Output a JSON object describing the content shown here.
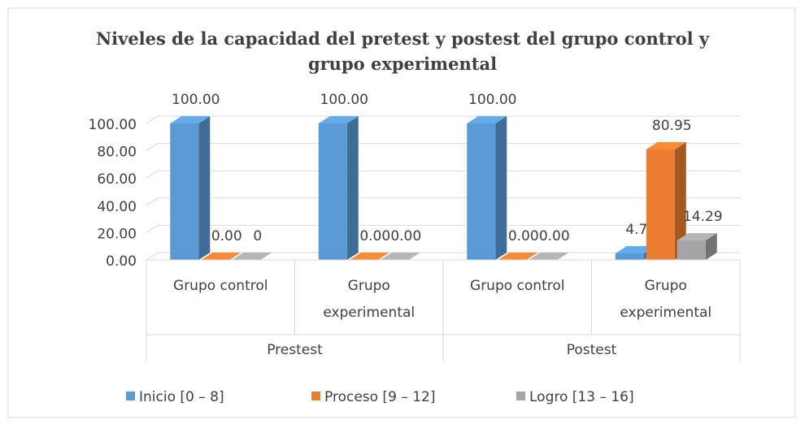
{
  "chart_data": {
    "type": "bar3d",
    "title": "Niveles de la capacidad del pretest y postest del grupo control y grupo experimental",
    "categories": [
      "Grupo control",
      "Grupo experimental",
      "Grupo control",
      "Grupo experimental"
    ],
    "group_labels": [
      "Prestest",
      "Postest"
    ],
    "series": [
      {
        "name": "Inicio [0 – 8]",
        "color": "#5b9bd5",
        "values": [
          100,
          100,
          100,
          4.76
        ],
        "value_labels": [
          "100.00",
          "100.00",
          "100.00",
          "4.76"
        ]
      },
      {
        "name": "Proceso [9 – 12]",
        "color": "#ed7d31",
        "values": [
          0,
          0,
          0,
          80.95
        ],
        "value_labels": [
          "0.00",
          "0.00",
          "0.00",
          "80.95"
        ]
      },
      {
        "name": "Logro [13 – 16]",
        "color": "#a5a5a5",
        "values": [
          0,
          0,
          0,
          14.29
        ],
        "value_labels": [
          "0",
          "0.00",
          "0.00",
          "14.29"
        ]
      }
    ],
    "ylim": [
      0,
      100
    ],
    "yticks": [
      {
        "value": 0,
        "label": "0.00"
      },
      {
        "value": 20,
        "label": "20.00"
      },
      {
        "value": 40,
        "label": "40.00"
      },
      {
        "value": 60,
        "label": "60.00"
      },
      {
        "value": 80,
        "label": "80.00"
      },
      {
        "value": 100,
        "label": "100.00"
      }
    ],
    "grid": true,
    "legend": "bottom"
  }
}
